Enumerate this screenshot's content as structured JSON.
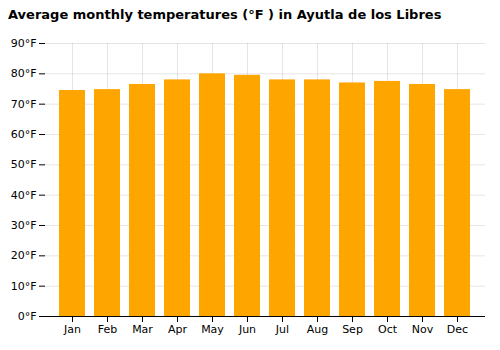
{
  "chart_data": {
    "type": "bar",
    "title": "Average monthly temperatures (°F ) in Ayutla de los Libres",
    "categories": [
      "Jan",
      "Feb",
      "Mar",
      "Apr",
      "May",
      "Jun",
      "Jul",
      "Aug",
      "Sep",
      "Oct",
      "Nov",
      "Dec"
    ],
    "values": [
      74.5,
      74.8,
      76.5,
      78.0,
      80.0,
      79.5,
      78.0,
      78.0,
      77.0,
      77.5,
      76.5,
      74.8
    ],
    "color": "#FFA500",
    "ylim": [
      0,
      90
    ],
    "yticks": [
      {
        "value": 0,
        "label": "0°F"
      },
      {
        "value": 10,
        "label": "10°F"
      },
      {
        "value": 20,
        "label": "20°F"
      },
      {
        "value": 30,
        "label": "30°F"
      },
      {
        "value": 40,
        "label": "40°F"
      },
      {
        "value": 50,
        "label": "50°F"
      },
      {
        "value": 60,
        "label": "60°F"
      },
      {
        "value": 70,
        "label": "70°F"
      },
      {
        "value": 80,
        "label": "80°F"
      },
      {
        "value": 90,
        "label": "90°F"
      }
    ],
    "grid": true
  }
}
